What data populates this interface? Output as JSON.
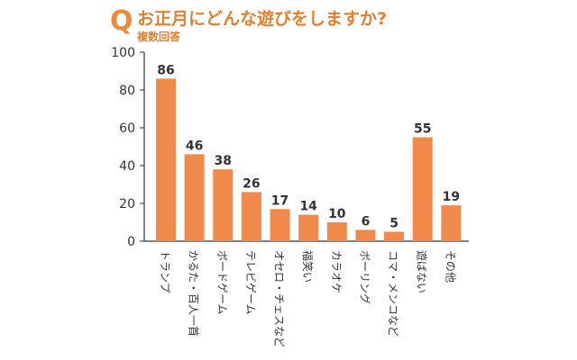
{
  "header": {
    "q_mark": "Q",
    "title": "お正月にどんな遊びをしますか?",
    "subtitle": "複数回答"
  },
  "colors": {
    "bar": "#f0894a",
    "accent": "#e57f2e",
    "axis": "#333333"
  },
  "chart_data": {
    "type": "bar",
    "title": "お正月にどんな遊びをしますか?",
    "subtitle": "複数回答",
    "xlabel": "",
    "ylabel": "",
    "ylim": [
      0,
      100
    ],
    "yticks": [
      0,
      20,
      40,
      60,
      80,
      100
    ],
    "grid": false,
    "categories": [
      "トランプ",
      "かるた・百人一首",
      "ボードゲーム",
      "テレビゲーム",
      "オセロ・チェスなど",
      "福笑い",
      "カラオケ",
      "ボーリング",
      "コマ・メンコなど",
      "遊ばない",
      "その他"
    ],
    "values": [
      86,
      46,
      38,
      26,
      17,
      14,
      10,
      6,
      5,
      55,
      19
    ]
  }
}
